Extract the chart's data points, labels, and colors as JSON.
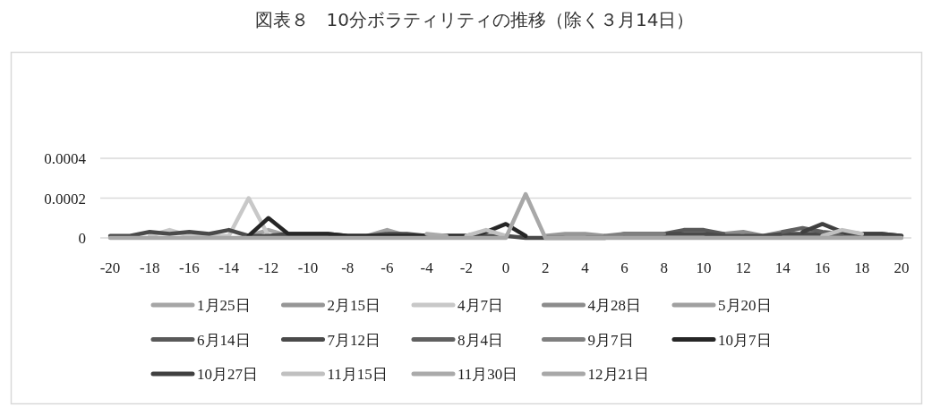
{
  "chart_data": {
    "type": "line",
    "title": "図表８　10分ボラティリティの推移（除く３月14日）",
    "x": [
      -20,
      -19,
      -18,
      -17,
      -16,
      -15,
      -14,
      -13,
      -12,
      -11,
      -10,
      -9,
      -8,
      -7,
      -6,
      -5,
      -4,
      -3,
      -2,
      -1,
      0,
      1,
      2,
      3,
      4,
      5,
      6,
      7,
      8,
      9,
      10,
      11,
      12,
      13,
      14,
      15,
      16,
      17,
      18,
      19,
      20
    ],
    "xlim": [
      -20.5,
      20.5
    ],
    "xticks": [
      -20,
      -18,
      -16,
      -14,
      -12,
      -10,
      -8,
      -6,
      -4,
      -2,
      0,
      2,
      4,
      6,
      8,
      10,
      12,
      14,
      16,
      18,
      20
    ],
    "ylim": [
      0,
      0.0004
    ],
    "yticks": [
      0,
      0.0002,
      0.0004
    ],
    "grid": "y",
    "legend": "bottom",
    "series": [
      {
        "name": "1月25日",
        "color": "#a6a6a6",
        "values": [
          null,
          null,
          null,
          null,
          null,
          null,
          null,
          1e-05,
          4e-05,
          1e-05,
          null,
          null,
          null,
          null,
          null,
          null,
          null,
          null,
          null,
          null,
          null,
          null,
          null,
          null,
          null,
          null,
          null,
          null,
          null,
          null,
          null,
          null,
          null,
          null,
          null,
          null,
          null,
          null,
          null,
          null,
          null
        ]
      },
      {
        "name": "2月15日",
        "color": "#969696",
        "values": [
          null,
          null,
          null,
          null,
          null,
          null,
          null,
          null,
          null,
          null,
          null,
          null,
          null,
          null,
          null,
          null,
          null,
          null,
          null,
          null,
          null,
          null,
          1e-05,
          2e-05,
          2e-05,
          1e-05,
          null,
          null,
          null,
          null,
          null,
          null,
          null,
          null,
          null,
          null,
          null,
          null,
          null,
          null,
          null
        ]
      },
      {
        "name": "4月7日",
        "color": "#c8c8c8",
        "values": [
          null,
          null,
          1e-05,
          4e-05,
          1e-05,
          1e-05,
          1e-05,
          0.0002,
          1e-05,
          null,
          null,
          null,
          null,
          null,
          null,
          null,
          null,
          null,
          null,
          null,
          null,
          null,
          null,
          null,
          null,
          null,
          null,
          null,
          null,
          null,
          null,
          null,
          null,
          null,
          null,
          null,
          null,
          null,
          null,
          null,
          null
        ]
      },
      {
        "name": "4月28日",
        "color": "#8c8c8c",
        "values": [
          null,
          null,
          null,
          null,
          null,
          null,
          null,
          null,
          null,
          null,
          null,
          null,
          null,
          null,
          null,
          null,
          null,
          null,
          null,
          null,
          null,
          null,
          null,
          null,
          null,
          null,
          null,
          null,
          null,
          null,
          null,
          2e-05,
          3e-05,
          1e-05,
          3e-05,
          null,
          null,
          null,
          null,
          null,
          null
        ]
      },
      {
        "name": "5月20日",
        "color": "#a0a0a0",
        "values": [
          null,
          null,
          null,
          null,
          null,
          null,
          null,
          null,
          null,
          null,
          null,
          null,
          null,
          1e-05,
          4e-05,
          1e-05,
          null,
          null,
          null,
          null,
          null,
          null,
          null,
          null,
          null,
          null,
          null,
          null,
          null,
          null,
          null,
          null,
          null,
          null,
          null,
          null,
          null,
          null,
          null,
          null,
          null
        ]
      },
      {
        "name": "6月14日",
        "color": "#595959",
        "values": [
          null,
          null,
          null,
          null,
          null,
          null,
          null,
          null,
          null,
          null,
          null,
          null,
          null,
          null,
          null,
          null,
          null,
          null,
          null,
          null,
          null,
          null,
          null,
          null,
          null,
          null,
          null,
          null,
          2e-05,
          4e-05,
          4e-05,
          2e-05,
          null,
          null,
          null,
          null,
          null,
          null,
          null,
          null,
          null
        ]
      },
      {
        "name": "7月12日",
        "color": "#4a4a4a",
        "values": [
          1e-05,
          1e-05,
          3e-05,
          2e-05,
          3e-05,
          2e-05,
          4e-05,
          1e-05,
          1e-05,
          2e-05,
          2e-05,
          2e-05,
          1e-05,
          1e-05,
          2e-05,
          2e-05,
          1e-05,
          1e-05,
          1e-05,
          1e-05,
          1e-05,
          0,
          0,
          0,
          0,
          0,
          2e-05,
          2e-05,
          2e-05,
          2e-05,
          2e-05,
          1e-05,
          1e-05,
          1e-05,
          2e-05,
          2e-05,
          2e-05,
          2e-05,
          2e-05,
          2e-05,
          1e-05
        ]
      },
      {
        "name": "8月4日",
        "color": "#606060",
        "values": [
          null,
          null,
          null,
          null,
          null,
          null,
          null,
          null,
          null,
          null,
          null,
          null,
          null,
          null,
          null,
          null,
          null,
          null,
          null,
          null,
          null,
          null,
          null,
          null,
          null,
          null,
          null,
          null,
          null,
          null,
          null,
          null,
          null,
          null,
          3e-05,
          5e-05,
          3e-05,
          2e-05,
          null,
          null,
          null
        ]
      },
      {
        "name": "9月7日",
        "color": "#7f7f7f",
        "values": [
          null,
          null,
          null,
          null,
          null,
          null,
          null,
          null,
          null,
          null,
          null,
          null,
          null,
          null,
          null,
          null,
          null,
          null,
          null,
          null,
          null,
          null,
          null,
          null,
          null,
          1e-05,
          2e-05,
          2e-05,
          2e-05,
          null,
          null,
          null,
          null,
          null,
          null,
          null,
          null,
          null,
          null,
          null,
          null
        ]
      },
      {
        "name": "10月7日",
        "color": "#262626",
        "values": [
          null,
          null,
          null,
          null,
          null,
          null,
          null,
          1e-05,
          0.0001,
          2e-05,
          2e-05,
          2e-05,
          1e-05,
          1e-05,
          1e-05,
          1e-05,
          1e-05,
          1e-05,
          1e-05,
          3e-05,
          7e-05,
          1e-05,
          null,
          null,
          null,
          null,
          null,
          null,
          null,
          null,
          null,
          null,
          null,
          null,
          null,
          null,
          null,
          null,
          null,
          null,
          null
        ]
      },
      {
        "name": "10月27日",
        "color": "#404040",
        "values": [
          null,
          null,
          null,
          null,
          null,
          null,
          null,
          null,
          null,
          null,
          null,
          null,
          null,
          null,
          null,
          null,
          null,
          null,
          null,
          null,
          null,
          null,
          null,
          null,
          null,
          null,
          null,
          null,
          null,
          null,
          null,
          null,
          null,
          null,
          null,
          3e-05,
          7e-05,
          3e-05,
          2e-05,
          2e-05,
          1e-05
        ]
      },
      {
        "name": "11月15日",
        "color": "#c0c0c0",
        "values": [
          null,
          null,
          null,
          null,
          null,
          null,
          null,
          null,
          null,
          null,
          null,
          null,
          null,
          null,
          null,
          null,
          null,
          null,
          1e-05,
          4e-05,
          1e-05,
          null,
          null,
          null,
          null,
          null,
          null,
          null,
          null,
          null,
          null,
          null,
          null,
          null,
          null,
          null,
          1e-05,
          4e-05,
          2e-05,
          null,
          null
        ]
      },
      {
        "name": "11月30日",
        "color": "#aaaaaa",
        "values": [
          null,
          null,
          null,
          null,
          null,
          null,
          null,
          null,
          null,
          null,
          null,
          null,
          null,
          null,
          null,
          null,
          2e-05,
          1e-05,
          null,
          null,
          null,
          null,
          null,
          null,
          null,
          null,
          null,
          null,
          null,
          null,
          null,
          null,
          null,
          null,
          null,
          null,
          null,
          null,
          null,
          null,
          null
        ]
      },
      {
        "name": "12月21日",
        "color": "#a8a8a8",
        "values": [
          0,
          0,
          0,
          0,
          0,
          0,
          0,
          0,
          0,
          0,
          0,
          0,
          0,
          0,
          0,
          0,
          0,
          0,
          0,
          0,
          0,
          0.00022,
          0,
          0,
          0,
          0,
          0,
          0,
          0,
          0,
          0,
          0,
          0,
          0,
          0,
          0,
          0,
          0,
          0,
          0,
          0
        ]
      }
    ]
  }
}
